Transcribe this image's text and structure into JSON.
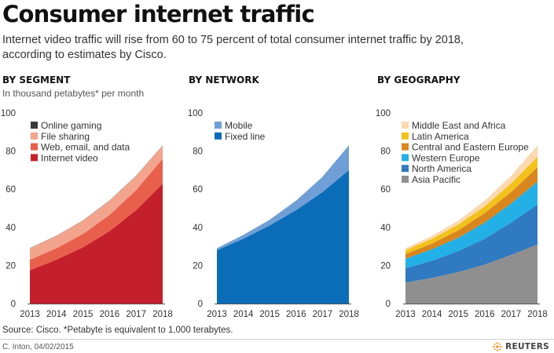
{
  "header": {
    "title": "Consumer internet traffic",
    "subtitle": "Internet video traffic will rise from 60 to 75 percent of total consumer internet traffic by 2018, according to estimates by Cisco."
  },
  "footer": {
    "source": "Source: Cisco. *Petabyte is equivalent to 1,000 terabytes.",
    "credit": "C. Inton, 04/02/2015",
    "logo": "REUTERS"
  },
  "chart_data": [
    {
      "type": "area",
      "stacked": true,
      "title": "BY SEGMENT",
      "unit_note": "In thousand petabytes* per month",
      "x": [
        "2013",
        "2014",
        "2015",
        "2016",
        "2017",
        "2018"
      ],
      "ylim": [
        0,
        100
      ],
      "yticks": [
        0,
        20,
        40,
        60,
        80,
        100
      ],
      "grid": false,
      "legend_position": "top-left",
      "series": [
        {
          "name": "Internet video",
          "color": "#c4202b",
          "values": [
            17.5,
            23,
            29.5,
            38,
            49,
            63
          ]
        },
        {
          "name": "Web, email, and data",
          "color": "#e8604c",
          "values": [
            5.5,
            6,
            7,
            8.5,
            10.5,
            13
          ]
        },
        {
          "name": "File sharing",
          "color": "#f3a48d",
          "values": [
            6,
            6.5,
            7,
            7.5,
            7.5,
            7
          ]
        },
        {
          "name": "Online gaming",
          "color": "#3a3a3a",
          "values": [
            0.1,
            0.1,
            0.1,
            0.1,
            0.1,
            0.1
          ]
        }
      ]
    },
    {
      "type": "area",
      "stacked": true,
      "title": "BY NETWORK",
      "x": [
        "2013",
        "2014",
        "2015",
        "2016",
        "2017",
        "2018"
      ],
      "ylim": [
        0,
        100
      ],
      "yticks": [
        0,
        20,
        40,
        60,
        80,
        100
      ],
      "grid": false,
      "legend_position": "top-left",
      "series": [
        {
          "name": "Fixed line",
          "color": "#0b6db7",
          "values": [
            28,
            34,
            41,
            49,
            58.5,
            70
          ]
        },
        {
          "name": "Mobile",
          "color": "#6f9fd6",
          "values": [
            1,
            2,
            3,
            5,
            8,
            13
          ]
        }
      ]
    },
    {
      "type": "area",
      "stacked": true,
      "title": "BY GEOGRAPHY",
      "x": [
        "2013",
        "2014",
        "2015",
        "2016",
        "2017",
        "2018"
      ],
      "ylim": [
        0,
        100
      ],
      "yticks": [
        0,
        20,
        40,
        60,
        80,
        100
      ],
      "grid": false,
      "legend_position": "top-left",
      "series": [
        {
          "name": "Asia Pacific",
          "color": "#8f8f8f",
          "values": [
            11,
            13.5,
            16.5,
            20.5,
            25.5,
            31
          ]
        },
        {
          "name": "North America",
          "color": "#2f7ac0",
          "values": [
            7.5,
            9,
            11,
            13.5,
            17,
            21
          ]
        },
        {
          "name": "Western Europe",
          "color": "#22b0e6",
          "values": [
            5,
            6,
            7,
            8.5,
            10,
            12
          ]
        },
        {
          "name": "Central and Eastern Europe",
          "color": "#d9861e",
          "values": [
            2.5,
            3,
            4,
            5,
            6,
            7.5
          ]
        },
        {
          "name": "Latin America",
          "color": "#f2c21b",
          "values": [
            2,
            2.5,
            3,
            3.5,
            4.5,
            5.5
          ]
        },
        {
          "name": "Middle East and Africa",
          "color": "#fcd9b0",
          "values": [
            1,
            1.5,
            2,
            3,
            4,
            6
          ]
        }
      ]
    }
  ]
}
